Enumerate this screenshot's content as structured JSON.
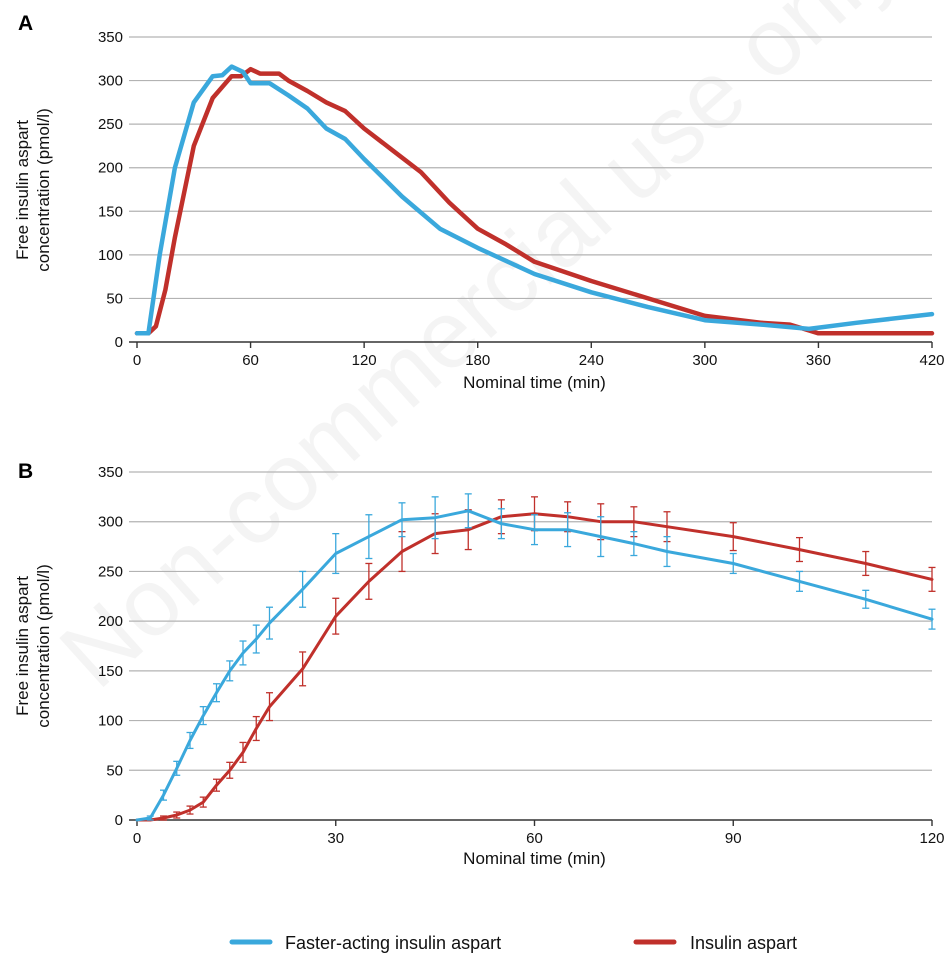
{
  "watermark": "Non-commercial use only",
  "colors": {
    "fast": "#3aa8dc",
    "aspart": "#c0302b",
    "grid": "#b3b3b3",
    "axis": "#333333"
  },
  "legend": [
    {
      "label": "Faster-acting insulin aspart",
      "color": "#3aa8dc"
    },
    {
      "label": "Insulin aspart",
      "color": "#c0302b"
    }
  ],
  "chart_data": [
    {
      "panel": "A",
      "type": "line",
      "xlabel": "Nominal time (min)",
      "ylabel": "Free insulin aspart concentration (pmol/l)",
      "ylabel_lines": [
        "Free insulin aspart",
        "concentration (pmol/l)"
      ],
      "xlim": [
        0,
        420
      ],
      "ylim": [
        0,
        350
      ],
      "xticks": [
        0,
        60,
        120,
        180,
        240,
        300,
        360,
        420
      ],
      "yticks": [
        0,
        50,
        100,
        150,
        200,
        250,
        300,
        350
      ],
      "grid": true,
      "series": [
        {
          "name": "Faster-acting insulin aspart",
          "color": "#3aa8dc",
          "x": [
            0,
            6,
            12,
            20,
            30,
            40,
            45,
            50,
            56,
            60,
            70,
            80,
            90,
            100,
            110,
            120,
            140,
            160,
            180,
            200,
            210,
            240,
            270,
            300,
            330,
            355,
            380,
            420
          ],
          "y": [
            10,
            10,
            100,
            200,
            275,
            305,
            306,
            316,
            310,
            297,
            297,
            283,
            268,
            245,
            233,
            210,
            167,
            130,
            108,
            88,
            78,
            57,
            40,
            25,
            20,
            15,
            22,
            32
          ]
        },
        {
          "name": "Insulin aspart",
          "color": "#c0302b",
          "x": [
            0,
            6,
            10,
            15,
            20,
            30,
            40,
            50,
            55,
            60,
            65,
            70,
            75,
            80,
            90,
            100,
            110,
            120,
            135,
            150,
            165,
            180,
            195,
            210,
            240,
            270,
            300,
            330,
            345,
            360,
            390,
            420
          ],
          "y": [
            10,
            10,
            18,
            60,
            120,
            225,
            280,
            305,
            305,
            313,
            308,
            308,
            308,
            300,
            288,
            275,
            265,
            245,
            220,
            195,
            160,
            130,
            112,
            92,
            70,
            50,
            30,
            22,
            20,
            10,
            10,
            10
          ]
        }
      ]
    },
    {
      "panel": "B",
      "type": "line",
      "xlabel": "Nominal time (min)",
      "ylabel": "Free insulin aspart concentration (pmol/l)",
      "ylabel_lines": [
        "Free insulin aspart",
        "concentration (pmol/l)"
      ],
      "xlim": [
        0,
        120
      ],
      "ylim": [
        0,
        350
      ],
      "xticks": [
        0,
        30,
        60,
        90,
        120
      ],
      "yticks": [
        0,
        50,
        100,
        150,
        200,
        250,
        300,
        350
      ],
      "grid": true,
      "error_bars": true,
      "series": [
        {
          "name": "Faster-acting insulin aspart",
          "color": "#3aa8dc",
          "x": [
            0,
            2,
            4,
            6,
            8,
            10,
            12,
            14,
            16,
            18,
            20,
            25,
            30,
            35,
            40,
            45,
            50,
            55,
            60,
            65,
            70,
            75,
            80,
            90,
            100,
            110,
            120
          ],
          "y": [
            0,
            2,
            25,
            52,
            80,
            105,
            128,
            150,
            168,
            182,
            198,
            232,
            268,
            285,
            302,
            304,
            311,
            298,
            292,
            292,
            285,
            278,
            270,
            258,
            240,
            222,
            202
          ],
          "err": [
            0,
            2,
            5,
            7,
            8,
            9,
            9,
            10,
            12,
            14,
            16,
            18,
            20,
            22,
            17,
            21,
            17,
            15,
            15,
            17,
            20,
            12,
            15,
            10,
            10,
            9,
            10
          ]
        },
        {
          "name": "Insulin aspart",
          "color": "#c0302b",
          "x": [
            0,
            2,
            4,
            6,
            8,
            10,
            12,
            14,
            16,
            18,
            20,
            25,
            30,
            35,
            40,
            45,
            50,
            55,
            60,
            65,
            70,
            75,
            80,
            90,
            100,
            110,
            120
          ],
          "y": [
            0,
            0,
            2,
            5,
            10,
            18,
            35,
            50,
            68,
            92,
            114,
            152,
            205,
            240,
            270,
            288,
            292,
            305,
            308,
            305,
            300,
            300,
            295,
            285,
            272,
            258,
            242
          ],
          "err": [
            0,
            0,
            2,
            3,
            4,
            5,
            6,
            8,
            10,
            12,
            14,
            17,
            18,
            18,
            20,
            20,
            20,
            17,
            17,
            15,
            18,
            15,
            15,
            14,
            12,
            12,
            12
          ]
        }
      ]
    }
  ]
}
